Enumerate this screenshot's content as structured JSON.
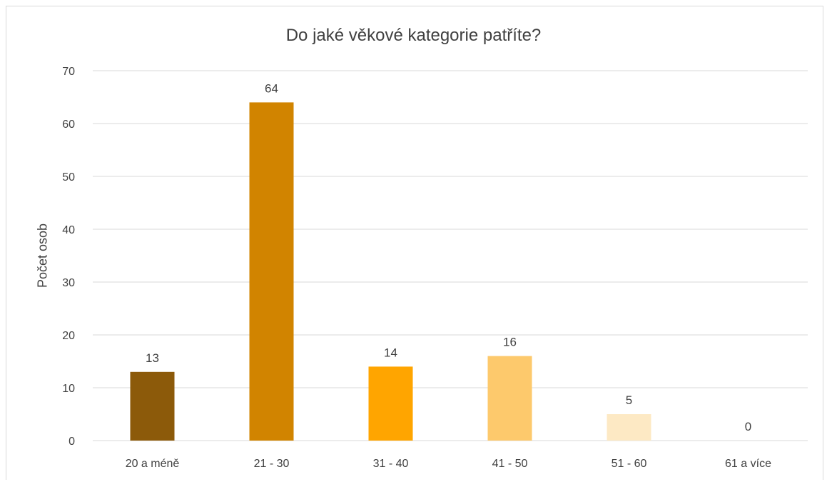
{
  "chart_data": {
    "type": "bar",
    "title": "Do jaké věkové kategorie patříte?",
    "xlabel": "",
    "ylabel": "Počet osob",
    "ylim": [
      0,
      70
    ],
    "yticks": [
      0,
      10,
      20,
      30,
      40,
      50,
      60,
      70
    ],
    "categories": [
      "20 a méně",
      "21 - 30",
      "31 - 40",
      "41 - 50",
      "51 - 60",
      "61 a více"
    ],
    "values": [
      13,
      64,
      14,
      16,
      5,
      0
    ],
    "colors": [
      "#8c5a0a",
      "#d18400",
      "#ffa500",
      "#fdc96c",
      "#fde9c4",
      "#fde9c4"
    ],
    "grid": true,
    "legend": "none"
  }
}
